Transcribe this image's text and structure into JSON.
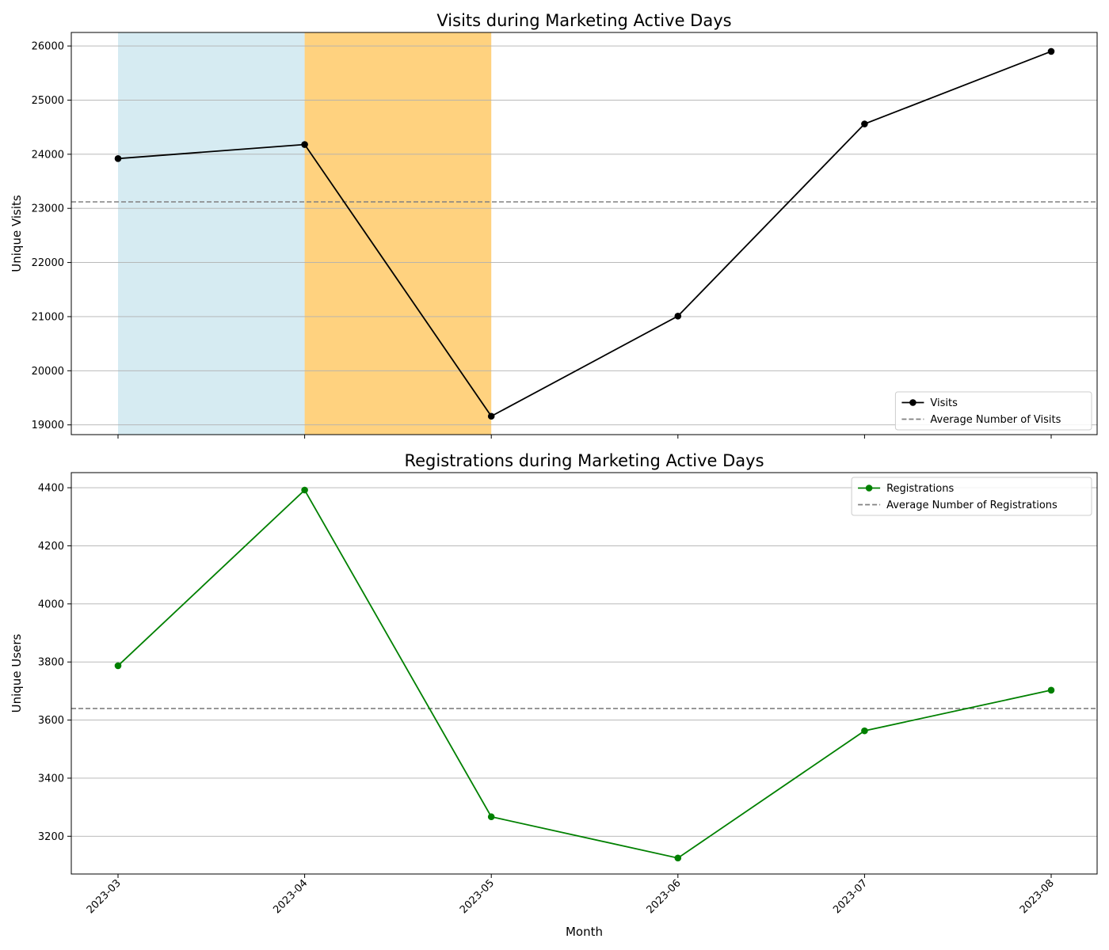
{
  "chart_data": [
    {
      "type": "line",
      "title": "Visits during Marketing Active Days",
      "xlabel": "",
      "ylabel": "Unique Visits",
      "x": [
        "2023-03",
        "2023-04",
        "2023-05",
        "2023-06",
        "2023-07",
        "2023-08"
      ],
      "series": [
        {
          "name": "Visits",
          "values": [
            23920,
            24180,
            19160,
            21010,
            24560,
            25900
          ],
          "color": "#000000",
          "marker": "circle",
          "linestyle": "solid"
        }
      ],
      "reference_lines": [
        {
          "name": "Average Number of Visits",
          "value": 23120,
          "color": "#808080",
          "linestyle": "dashed"
        }
      ],
      "shaded_spans": [
        {
          "from": "2023-03",
          "to": "2023-04",
          "color": "#add8e6",
          "opacity": 0.5
        },
        {
          "from": "2023-04",
          "to": "2023-05",
          "color": "#ffa500",
          "opacity": 0.5
        }
      ],
      "ylim": [
        18820,
        26250
      ],
      "yticks": [
        19000,
        20000,
        21000,
        22000,
        23000,
        24000,
        25000,
        26000
      ],
      "show_xtick_labels": false,
      "grid": "y",
      "legend": "lower right"
    },
    {
      "type": "line",
      "title": "Registrations during Marketing Active Days",
      "xlabel": "Month",
      "ylabel": "Unique Users",
      "x": [
        "2023-03",
        "2023-04",
        "2023-05",
        "2023-06",
        "2023-07",
        "2023-08"
      ],
      "series": [
        {
          "name": "Registrations",
          "values": [
            3787,
            4392,
            3267,
            3125,
            3563,
            3703
          ],
          "color": "#008000",
          "marker": "circle",
          "linestyle": "solid"
        }
      ],
      "reference_lines": [
        {
          "name": "Average Number of Registrations",
          "value": 3640,
          "color": "#808080",
          "linestyle": "dashed"
        }
      ],
      "shaded_spans": [],
      "ylim": [
        3070,
        4452
      ],
      "yticks": [
        3200,
        3400,
        3600,
        3800,
        4000,
        4200,
        4400
      ],
      "show_xtick_labels": true,
      "grid": "y",
      "legend": "upper right"
    }
  ]
}
